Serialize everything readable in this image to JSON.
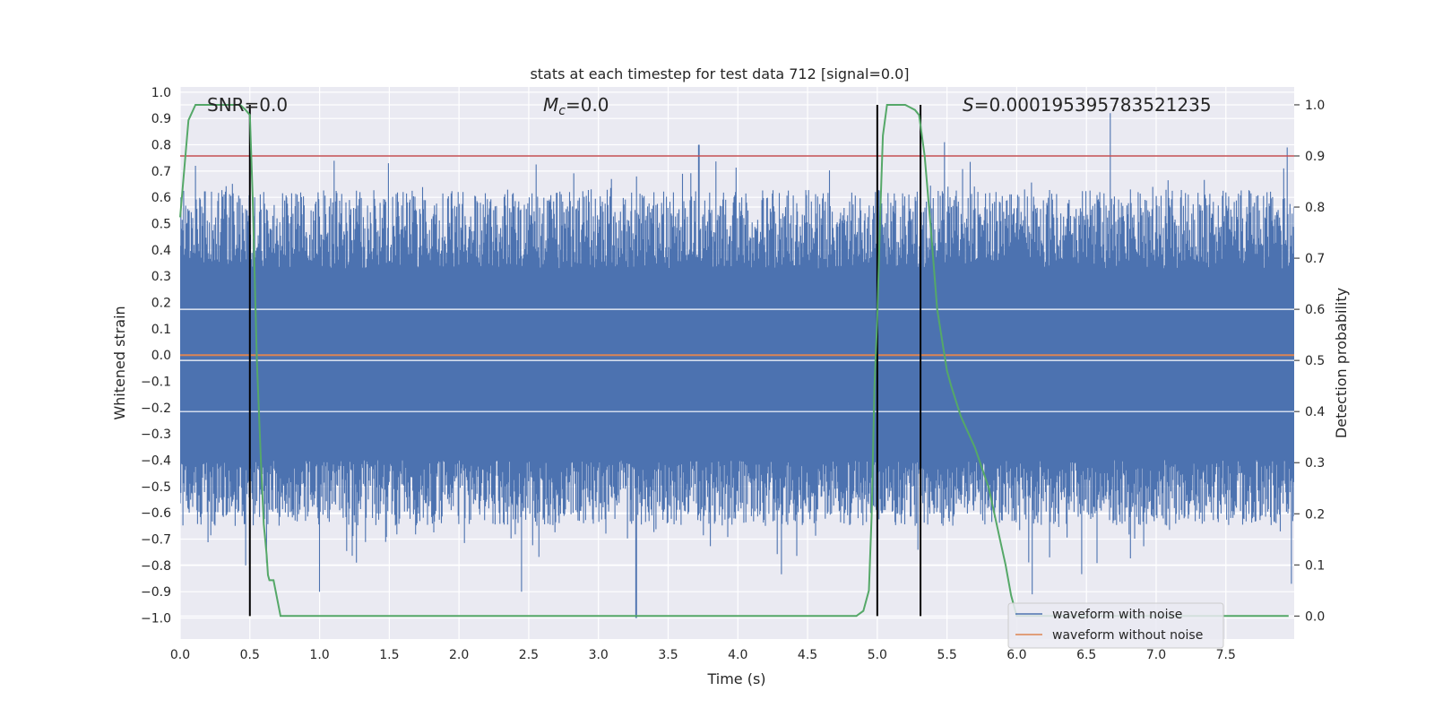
{
  "chart_data": {
    "type": "line",
    "title": "stats at each timestep for test data 712 [signal=0.0]",
    "xlabel": "Time (s)",
    "ylabel_left": "Whitened strain",
    "ylabel_right": "Detection probability",
    "xlim": [
      0.0,
      7.99
    ],
    "ylim_left": [
      -1.08,
      1.02
    ],
    "ylim_right": [
      -0.045,
      1.035
    ],
    "x_ticks": [
      "0.0",
      "0.5",
      "1.0",
      "1.5",
      "2.0",
      "2.5",
      "3.0",
      "3.5",
      "4.0",
      "4.5",
      "5.0",
      "5.5",
      "6.0",
      "6.5",
      "7.0",
      "7.5"
    ],
    "y_left_ticks": [
      "1.0",
      "0.9",
      "0.8",
      "0.7",
      "0.6",
      "0.5",
      "0.4",
      "0.3",
      "0.2",
      "0.1",
      "0.0",
      "−0.1",
      "−0.2",
      "−0.3",
      "−0.4",
      "−0.5",
      "−0.6",
      "−0.7",
      "−0.8",
      "−0.9",
      "−1.0"
    ],
    "y_right_ticks": [
      "1.0",
      "0.9",
      "0.8",
      "0.7",
      "0.6",
      "0.5",
      "0.4",
      "0.3",
      "0.2",
      "0.1",
      "0.0"
    ],
    "grid": true,
    "annotations": {
      "snr": "SNR=0.0",
      "mc_symbol": "M",
      "mc_subscript": "c",
      "mc_value": "=0.0",
      "s_symbol": "S",
      "s_value": "=0.000195395783521235"
    },
    "series": [
      {
        "name": "waveform with noise",
        "axis": "left",
        "color": "#4c72b0",
        "style": "dense noise, amplitude about ±0.5 with spikes to ±1.0",
        "peaks": [
          [
            0.11,
            0.72
          ],
          [
            1.0,
            -0.9
          ],
          [
            2.45,
            -0.9
          ],
          [
            3.27,
            -1.0
          ],
          [
            3.72,
            0.8
          ],
          [
            5.48,
            0.81
          ],
          [
            6.11,
            -0.91
          ],
          [
            6.67,
            0.92
          ],
          [
            7.94,
            0.79
          ],
          [
            7.97,
            -0.87
          ]
        ]
      },
      {
        "name": "waveform without noise",
        "axis": "left",
        "color": "#dd8452",
        "values_constant": 0.0
      },
      {
        "name": "detection probability",
        "axis": "right",
        "color": "#55a868",
        "x": [
          0.0,
          0.06,
          0.11,
          0.18,
          0.3,
          0.38,
          0.43,
          0.47,
          0.5,
          0.52,
          0.55,
          0.58,
          0.6,
          0.62,
          0.63,
          0.64,
          0.67,
          0.72,
          0.78,
          0.85,
          4.85,
          4.9,
          4.94,
          4.96,
          4.98,
          5.0,
          5.02,
          5.04,
          5.07,
          5.14,
          5.2,
          5.27,
          5.3,
          5.34,
          5.38,
          5.43,
          5.47,
          5.5,
          5.53,
          5.6,
          5.7,
          5.8,
          5.88,
          5.92,
          5.96,
          6.0,
          7.95
        ],
        "y": [
          0.78,
          0.97,
          1.0,
          1.0,
          1.0,
          1.0,
          1.0,
          0.99,
          0.98,
          0.82,
          0.5,
          0.3,
          0.18,
          0.12,
          0.08,
          0.07,
          0.07,
          0.0,
          0.0,
          0.0,
          0.0,
          0.01,
          0.05,
          0.2,
          0.45,
          0.58,
          0.78,
          0.94,
          1.0,
          1.0,
          1.0,
          0.99,
          0.98,
          0.9,
          0.77,
          0.6,
          0.53,
          0.48,
          0.45,
          0.39,
          0.33,
          0.25,
          0.15,
          0.1,
          0.04,
          0.0,
          0.0
        ]
      },
      {
        "name": "threshold",
        "axis": "right",
        "color": "#c44e52",
        "values_constant": 0.9
      }
    ],
    "vertical_lines": [
      0.5,
      5.0,
      5.31
    ],
    "legend": {
      "position": "bottom-right",
      "entries": [
        "waveform with noise",
        "waveform without noise"
      ]
    }
  },
  "colors": {
    "background": "#eaeaf2",
    "grid": "#ffffff",
    "noise": "#4c72b0",
    "clean": "#dd8452",
    "prob": "#55a868",
    "threshold": "#c44e52",
    "vlines": "#000000"
  }
}
